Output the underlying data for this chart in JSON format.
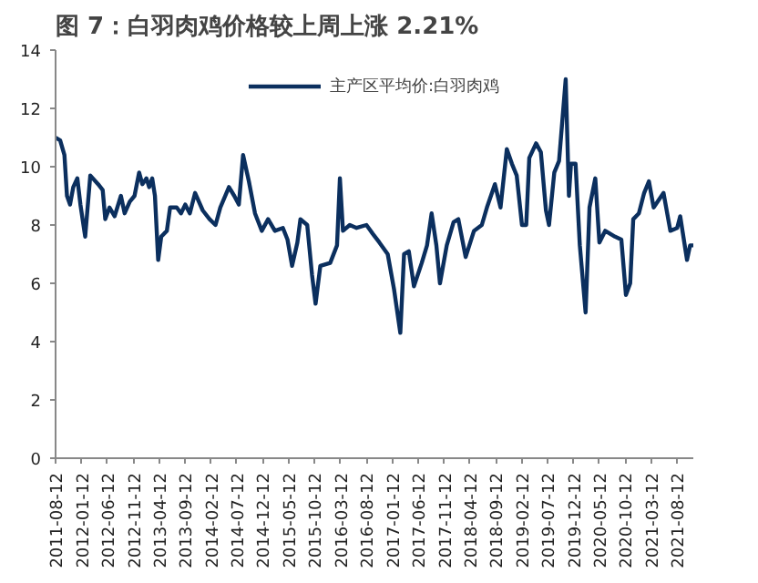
{
  "chart_data": {
    "type": "line",
    "title": "图 7：白羽肉鸡价格较上周上涨 2.21%",
    "xlim": [
      "2011-08-12",
      "2021-11-15"
    ],
    "xticks": [
      "2011-08-12",
      "2012-01-12",
      "2012-06-12",
      "2012-11-12",
      "2013-04-12",
      "2013-09-12",
      "2014-02-12",
      "2014-07-12",
      "2014-12-12",
      "2015-05-12",
      "2015-10-12",
      "2016-03-12",
      "2016-08-12",
      "2017-01-12",
      "2017-06-12",
      "2017-11-12",
      "2018-04-12",
      "2018-09-12",
      "2019-02-12",
      "2019-07-12",
      "2019-12-12",
      "2020-05-12",
      "2020-10-12",
      "2021-03-12",
      "2021-08-12"
    ],
    "ylim": [
      0,
      14
    ],
    "yticks": [
      0,
      2,
      4,
      6,
      8,
      10,
      12,
      14
    ],
    "grid": false,
    "legend": "top",
    "marker": "none",
    "line_style": "solid",
    "series": [
      {
        "name": "主产区平均价:白羽肉鸡",
        "color": "#0b2f5e",
        "x": [
          "2011-08-12",
          "2011-09-08",
          "2011-10-03",
          "2011-10-18",
          "2011-11-05",
          "2011-11-24",
          "2011-12-18",
          "2012-01-05",
          "2012-02-02",
          "2012-03-03",
          "2012-04-18",
          "2012-05-15",
          "2012-05-30",
          "2012-06-24",
          "2012-07-24",
          "2012-08-30",
          "2012-09-21",
          "2012-10-21",
          "2012-11-18",
          "2012-12-15",
          "2013-01-03",
          "2013-01-27",
          "2013-02-12",
          "2013-03-02",
          "2013-03-18",
          "2013-04-06",
          "2013-04-24",
          "2013-05-27",
          "2013-06-15",
          "2013-07-24",
          "2013-08-18",
          "2013-09-12",
          "2013-10-09",
          "2013-11-09",
          "2013-12-24",
          "2014-02-02",
          "2014-03-09",
          "2014-04-06",
          "2014-05-27",
          "2014-06-27",
          "2014-07-24",
          "2014-08-18",
          "2014-09-21",
          "2014-10-27",
          "2014-12-06",
          "2015-01-12",
          "2015-02-21",
          "2015-04-09",
          "2015-05-06",
          "2015-06-02",
          "2015-07-03",
          "2015-07-21",
          "2015-08-30",
          "2015-09-27",
          "2015-10-18",
          "2015-11-15",
          "2016-01-12",
          "2016-02-21",
          "2016-03-09",
          "2016-03-27",
          "2016-05-06",
          "2016-06-15",
          "2016-08-12",
          "2016-09-18",
          "2016-10-27",
          "2016-12-15",
          "2017-01-21",
          "2017-02-27",
          "2017-03-21",
          "2017-04-18",
          "2017-05-18",
          "2017-07-03",
          "2017-08-03",
          "2017-08-30",
          "2017-09-27",
          "2017-10-18",
          "2017-11-27",
          "2018-01-06",
          "2018-02-03",
          "2018-03-18",
          "2018-05-06",
          "2018-06-21",
          "2018-07-21",
          "2018-09-06",
          "2018-10-09",
          "2018-11-15",
          "2018-12-15",
          "2019-01-12",
          "2019-02-12",
          "2019-03-09",
          "2019-03-27",
          "2019-05-06",
          "2019-06-03",
          "2019-07-03",
          "2019-07-21",
          "2019-08-21",
          "2019-09-18",
          "2019-10-27",
          "2019-11-15",
          "2019-11-27",
          "2019-12-24",
          "2020-01-18",
          "2020-02-21",
          "2020-03-15",
          "2020-04-18",
          "2020-05-12",
          "2020-06-15",
          "2020-08-12",
          "2020-09-18",
          "2020-10-15",
          "2020-11-09",
          "2020-11-27",
          "2020-12-30",
          "2021-01-30",
          "2021-02-27",
          "2021-03-27",
          "2021-05-24",
          "2021-07-03",
          "2021-08-12",
          "2021-08-30",
          "2021-10-09",
          "2021-10-27",
          "2021-11-15"
        ],
        "values": [
          11.0,
          10.9,
          10.4,
          9.0,
          8.7,
          9.3,
          9.6,
          8.7,
          7.6,
          9.7,
          9.4,
          9.2,
          8.2,
          8.6,
          8.3,
          9.0,
          8.4,
          8.8,
          9.0,
          9.8,
          9.4,
          9.6,
          9.3,
          9.6,
          9.0,
          6.8,
          7.6,
          7.8,
          8.6,
          8.6,
          8.4,
          8.7,
          8.4,
          9.1,
          8.5,
          8.2,
          8.0,
          8.6,
          9.3,
          9.0,
          8.7,
          10.4,
          9.5,
          8.4,
          7.8,
          8.2,
          7.8,
          7.9,
          7.5,
          6.6,
          7.4,
          8.2,
          8.0,
          6.3,
          5.3,
          6.6,
          6.7,
          7.3,
          9.6,
          7.8,
          8.0,
          7.9,
          8.0,
          7.7,
          7.4,
          7.0,
          5.8,
          4.3,
          7.0,
          7.1,
          5.9,
          6.7,
          7.3,
          8.4,
          7.3,
          6.0,
          7.3,
          8.1,
          8.2,
          6.9,
          7.8,
          8.0,
          8.6,
          9.4,
          8.6,
          10.6,
          10.1,
          9.7,
          8.0,
          8.0,
          10.3,
          10.8,
          10.5,
          8.5,
          8.0,
          9.8,
          10.2,
          13.0,
          9.0,
          10.1,
          10.1,
          7.3,
          5.0,
          8.6,
          9.6,
          7.4,
          7.8,
          7.6,
          7.5,
          5.6,
          6.0,
          8.2,
          8.4,
          9.1,
          9.5,
          8.6,
          9.1,
          7.8,
          7.9,
          8.3,
          6.8,
          7.3,
          7.3
        ]
      }
    ]
  }
}
